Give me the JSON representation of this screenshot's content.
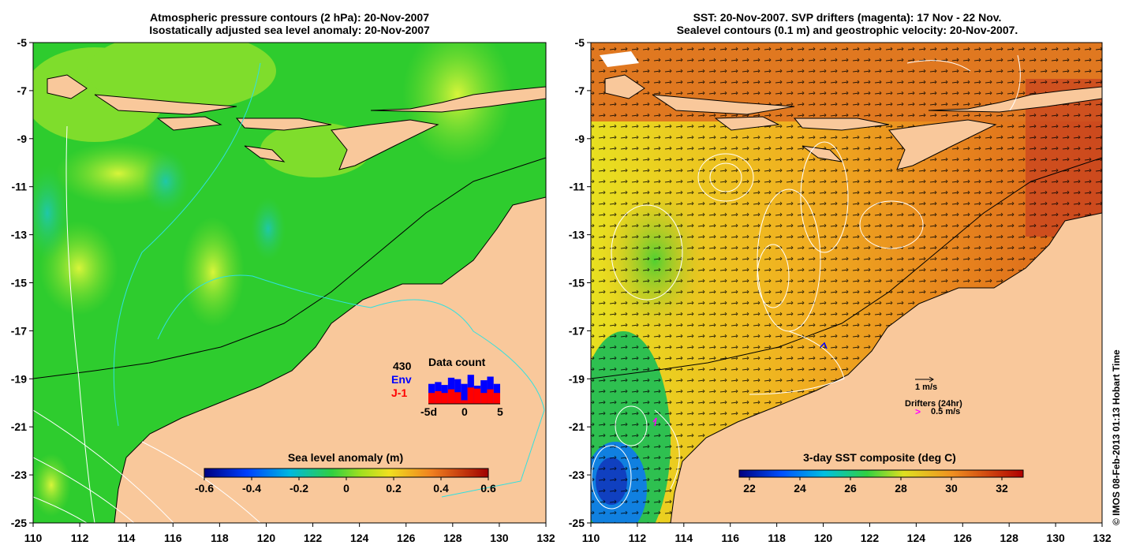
{
  "left_panel": {
    "title_line1": "Atmospheric pressure contours (2 hPa): 20-Nov-2007",
    "title_line2": "Isostatically adjusted sea level anomaly: 20-Nov-2007",
    "colorbar": {
      "label": "Sea level anomaly (m)",
      "ticks": [
        "-0.6",
        "-0.4",
        "-0.2",
        "0",
        "0.2",
        "0.4",
        "0.6"
      ]
    },
    "data_count": {
      "total": "430",
      "series1": "Env",
      "series2": "J-1",
      "title": "Data count",
      "x_ticks": [
        "-5d",
        "0",
        "5"
      ],
      "bars_env": [
        0.55,
        0.6,
        0.52,
        0.72,
        0.68,
        0.55,
        0.8,
        0.5,
        0.65,
        0.75,
        0.55
      ],
      "bars_j1": [
        0.3,
        0.35,
        0.3,
        0.4,
        0.32,
        0.1,
        0.45,
        0.42,
        0.3,
        0.4,
        0.3
      ],
      "colors": {
        "env": "#0000ff",
        "j1": "#ff0000"
      }
    }
  },
  "right_panel": {
    "title_line1": "SST: 20-Nov-2007. SVP drifters (magenta): 17 Nov - 22 Nov.",
    "title_line2": "Sealevel contours (0.1 m) and geostrophic velocity: 20-Nov-2007.",
    "colorbar": {
      "label": "3-day SST composite (deg C)",
      "ticks": [
        "22",
        "24",
        "26",
        "28",
        "30",
        "32"
      ]
    },
    "legend": {
      "velocity_scale": "1 m/s",
      "drifters_label": "Drifters (24hr)",
      "drifters_scale": "0.5 m/s"
    }
  },
  "axes": {
    "y_ticks": [
      "-5",
      "-7",
      "-9",
      "-11",
      "-13",
      "-15",
      "-17",
      "-19",
      "-21",
      "-23",
      "-25"
    ],
    "x_ticks": [
      "110",
      "112",
      "114",
      "116",
      "118",
      "120",
      "122",
      "124",
      "126",
      "128",
      "130",
      "132"
    ]
  },
  "credit": "© IMOS 08-Feb-2013 01:13 Hobart Time",
  "colors": {
    "land": "#f9c89b",
    "ocean_green": "#2ecc2e",
    "sst_orange": "#e8821e",
    "coast_line": "#000000"
  }
}
